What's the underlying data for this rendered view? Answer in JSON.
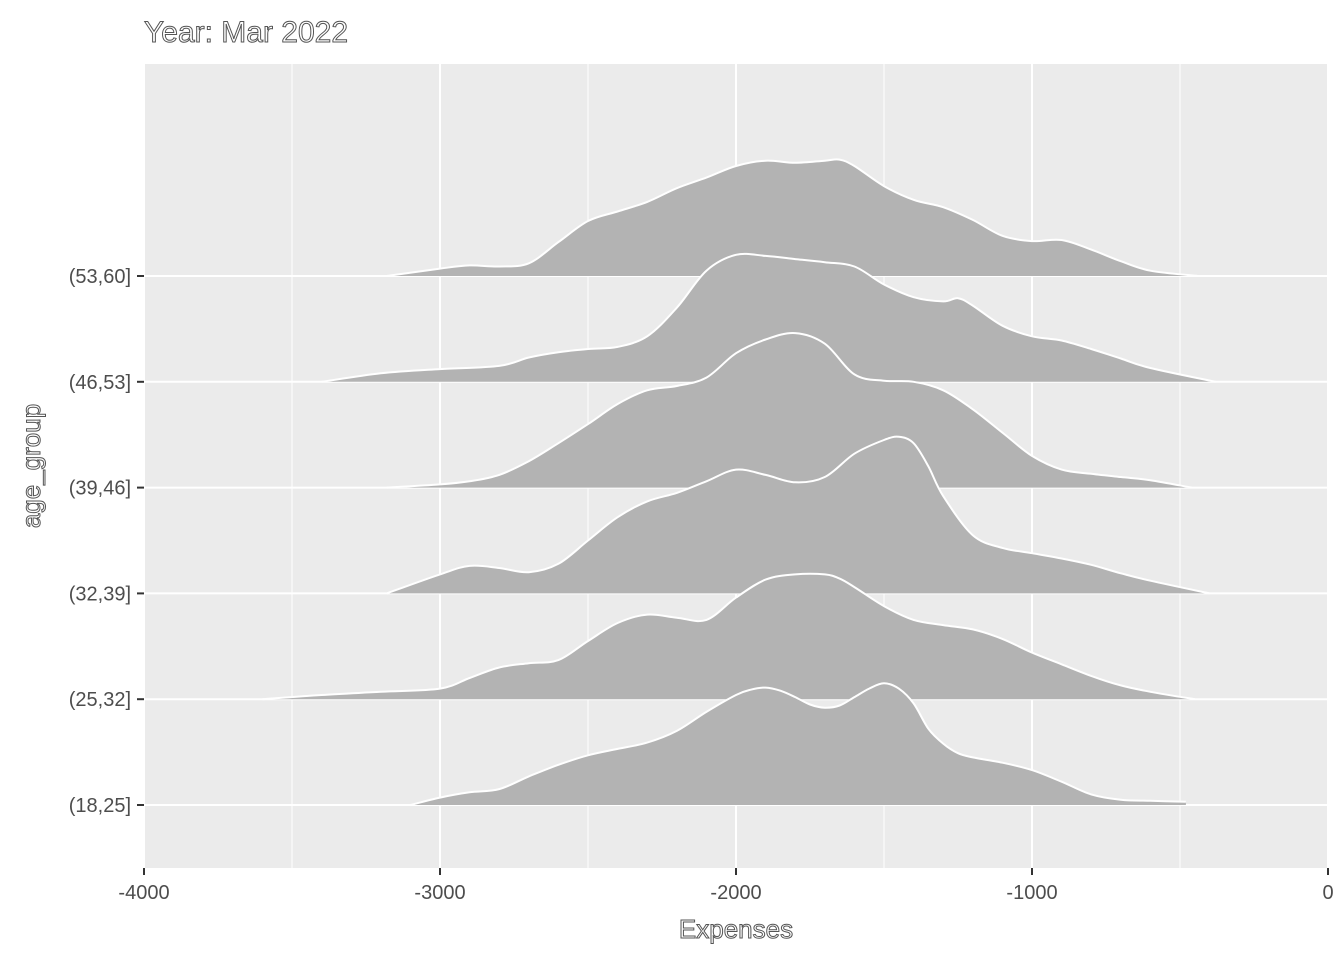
{
  "chart_data": {
    "type": "ridgeline",
    "title": "Year: Mar 2022",
    "xlabel": "Expenses",
    "ylabel": "age_group",
    "xlim": [
      -4000,
      0
    ],
    "x_ticks": [
      -4000,
      -3000,
      -2000,
      -1000,
      0
    ],
    "x_tick_labels": [
      "-4000",
      "-3000",
      "-2000",
      "-1000",
      "0"
    ],
    "grid": true,
    "fill_color": "#b3b3b3",
    "outline_color": "#ffffff",
    "panel_color": "#ebebeb",
    "categories": [
      "(18,25]",
      "(25,32]",
      "(32,39]",
      "(39,46]",
      "(46,53]",
      "(53,60]"
    ],
    "series": [
      {
        "name": "(18,25]",
        "x": [
          -3100,
          -3000,
          -2900,
          -2800,
          -2700,
          -2600,
          -2500,
          -2400,
          -2300,
          -2200,
          -2100,
          -2000,
          -1950,
          -1900,
          -1850,
          -1800,
          -1750,
          -1700,
          -1650,
          -1600,
          -1550,
          -1500,
          -1450,
          -1400,
          -1350,
          -1300,
          -1250,
          -1200,
          -1100,
          -1000,
          -900,
          -800,
          -700,
          -600,
          -480
        ],
        "y": [
          0.0,
          0.07,
          0.12,
          0.15,
          0.27,
          0.38,
          0.47,
          0.53,
          0.59,
          0.7,
          0.88,
          1.04,
          1.09,
          1.11,
          1.08,
          1.02,
          0.95,
          0.92,
          0.94,
          1.02,
          1.1,
          1.15,
          1.1,
          0.96,
          0.72,
          0.58,
          0.49,
          0.45,
          0.4,
          0.33,
          0.22,
          0.1,
          0.05,
          0.04,
          0.03
        ]
      },
      {
        "name": "(25,32]",
        "x": [
          -3600,
          -3400,
          -3200,
          -3000,
          -2900,
          -2800,
          -2700,
          -2600,
          -2500,
          -2400,
          -2300,
          -2200,
          -2100,
          -2000,
          -1900,
          -1800,
          -1700,
          -1650,
          -1600,
          -1500,
          -1400,
          -1300,
          -1200,
          -1100,
          -1000,
          -900,
          -800,
          -700,
          -600,
          -450
        ],
        "y": [
          0.0,
          0.04,
          0.07,
          0.1,
          0.2,
          0.3,
          0.34,
          0.37,
          0.55,
          0.72,
          0.8,
          0.77,
          0.75,
          0.96,
          1.13,
          1.18,
          1.18,
          1.14,
          1.06,
          0.88,
          0.75,
          0.7,
          0.66,
          0.57,
          0.44,
          0.33,
          0.22,
          0.13,
          0.07,
          0.0
        ]
      },
      {
        "name": "(32,39]",
        "x": [
          -3180,
          -3000,
          -2900,
          -2800,
          -2700,
          -2600,
          -2500,
          -2400,
          -2300,
          -2200,
          -2100,
          -2000,
          -1900,
          -1800,
          -1700,
          -1600,
          -1500,
          -1450,
          -1400,
          -1350,
          -1300,
          -1200,
          -1100,
          -1000,
          -900,
          -800,
          -700,
          -600,
          -400
        ],
        "y": [
          0.0,
          0.18,
          0.26,
          0.24,
          0.2,
          0.28,
          0.5,
          0.72,
          0.87,
          0.95,
          1.06,
          1.17,
          1.12,
          1.05,
          1.1,
          1.32,
          1.45,
          1.48,
          1.42,
          1.2,
          0.92,
          0.55,
          0.43,
          0.38,
          0.33,
          0.27,
          0.19,
          0.12,
          0.0
        ]
      },
      {
        "name": "(39,46]",
        "x": [
          -3180,
          -3000,
          -2900,
          -2800,
          -2700,
          -2600,
          -2500,
          -2400,
          -2300,
          -2200,
          -2100,
          -2000,
          -1900,
          -1800,
          -1700,
          -1600,
          -1500,
          -1400,
          -1300,
          -1200,
          -1100,
          -1000,
          -900,
          -800,
          -700,
          -600,
          -460
        ],
        "y": [
          0.0,
          0.03,
          0.06,
          0.12,
          0.25,
          0.42,
          0.6,
          0.79,
          0.92,
          0.96,
          1.04,
          1.27,
          1.4,
          1.46,
          1.36,
          1.07,
          1.01,
          1.0,
          0.92,
          0.74,
          0.52,
          0.3,
          0.17,
          0.13,
          0.1,
          0.07,
          0.0
        ]
      },
      {
        "name": "(46,53]",
        "x": [
          -3400,
          -3200,
          -3000,
          -2800,
          -2700,
          -2600,
          -2500,
          -2400,
          -2300,
          -2200,
          -2100,
          -2000,
          -1900,
          -1800,
          -1700,
          -1600,
          -1500,
          -1400,
          -1300,
          -1250,
          -1200,
          -1100,
          -1000,
          -900,
          -800,
          -700,
          -600,
          -380
        ],
        "y": [
          0.0,
          0.08,
          0.12,
          0.15,
          0.23,
          0.28,
          0.31,
          0.33,
          0.43,
          0.7,
          1.05,
          1.2,
          1.19,
          1.16,
          1.13,
          1.09,
          0.92,
          0.8,
          0.76,
          0.79,
          0.72,
          0.53,
          0.43,
          0.39,
          0.31,
          0.22,
          0.13,
          0.0
        ]
      },
      {
        "name": "(53,60]",
        "x": [
          -3180,
          -3000,
          -2900,
          -2800,
          -2700,
          -2600,
          -2500,
          -2400,
          -2300,
          -2200,
          -2100,
          -2000,
          -1900,
          -1800,
          -1700,
          -1650,
          -1600,
          -1500,
          -1400,
          -1300,
          -1200,
          -1100,
          -1000,
          -900,
          -800,
          -700,
          -600,
          -440
        ],
        "y": [
          0.0,
          0.07,
          0.1,
          0.09,
          0.12,
          0.32,
          0.52,
          0.61,
          0.7,
          0.83,
          0.93,
          1.04,
          1.09,
          1.07,
          1.09,
          1.1,
          1.04,
          0.85,
          0.72,
          0.65,
          0.53,
          0.38,
          0.33,
          0.34,
          0.25,
          0.14,
          0.05,
          0.0
        ]
      }
    ]
  }
}
